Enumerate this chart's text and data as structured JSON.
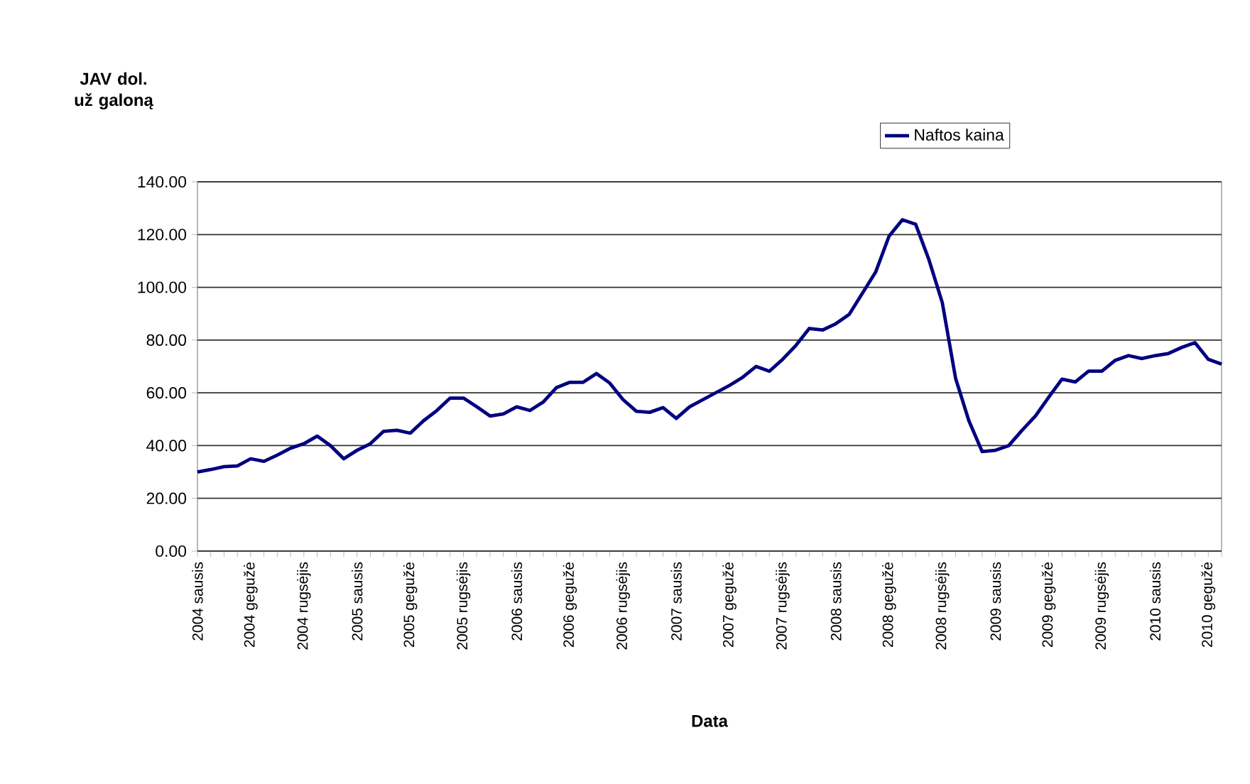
{
  "chart_data": {
    "type": "line",
    "xlabel": "Data",
    "ylabel": "JAV dol. už galoną",
    "categories": [
      "2004 sausis",
      null,
      null,
      null,
      "2004 gegužė",
      null,
      null,
      null,
      "2004 rugsėjis",
      null,
      null,
      null,
      "2005 sausis",
      null,
      null,
      null,
      "2005 gegužė",
      null,
      null,
      null,
      "2005 rugsėjis",
      null,
      null,
      null,
      "2006 sausis",
      null,
      null,
      null,
      "2006 gegužė",
      null,
      null,
      null,
      "2006 rugsėjis",
      null,
      null,
      null,
      "2007 sausis",
      null,
      null,
      null,
      "2007 gegužė",
      null,
      null,
      null,
      "2007 rugsėjis",
      null,
      null,
      null,
      "2008 sausis",
      null,
      null,
      null,
      "2008 gegužė",
      null,
      null,
      null,
      "2008 rugsėjis",
      null,
      null,
      null,
      "2009 sausis",
      null,
      null,
      null,
      "2009 gegužė",
      null,
      null,
      null,
      "2009 rugsėjis",
      null,
      null,
      null,
      "2010 sausis",
      null,
      null,
      null,
      "2010 gegužė",
      null
    ],
    "series": [
      {
        "name": "Naftos kaina",
        "color": "#000080",
        "values": [
          30.0,
          30.9,
          32.0,
          32.3,
          35.0,
          34.0,
          36.4,
          39.0,
          40.7,
          43.6,
          40.0,
          35.0,
          38.2,
          40.7,
          45.4,
          45.8,
          44.7,
          49.4,
          53.3,
          58.0,
          58.0,
          54.7,
          51.2,
          52.0,
          54.7,
          53.3,
          56.5,
          62.0,
          64.0,
          64.0,
          67.3,
          63.7,
          57.4,
          53.0,
          52.6,
          54.4,
          50.3,
          54.7,
          57.4,
          60.1,
          62.8,
          65.9,
          70.0,
          68.2,
          72.7,
          78.0,
          84.4,
          83.8,
          86.2,
          89.7,
          97.8,
          105.9,
          119.4,
          125.6,
          123.9,
          110.4,
          94.2,
          65.5,
          49.4,
          37.7,
          38.2,
          40.0,
          45.8,
          51.2,
          58.3,
          65.2,
          64.1,
          68.2,
          68.2,
          72.3,
          74.1,
          73.0,
          74.1,
          74.9,
          77.2,
          79.0,
          72.7,
          70.9
        ]
      }
    ],
    "ylim": [
      0,
      140
    ],
    "yticks": [
      {
        "value": 0,
        "label": "0.00"
      },
      {
        "value": 20,
        "label": "20.00"
      },
      {
        "value": 40,
        "label": "40.00"
      },
      {
        "value": 60,
        "label": "60.00"
      },
      {
        "value": 80,
        "label": "80.00"
      },
      {
        "value": 100,
        "label": "100.00"
      },
      {
        "value": 120,
        "label": "120.00"
      },
      {
        "value": 140,
        "label": "140.00"
      }
    ],
    "grid": "y",
    "legend": "top",
    "marker": "none",
    "line_style": "solid"
  }
}
